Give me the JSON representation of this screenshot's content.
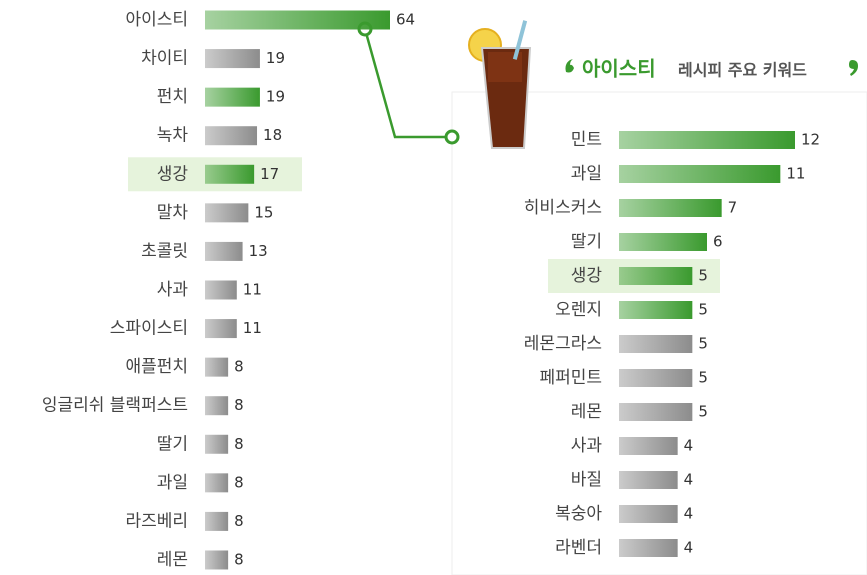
{
  "chart_data": [
    {
      "type": "bar",
      "orientation": "horizontal",
      "categories": [
        "아이스티",
        "차이티",
        "펀치",
        "녹차",
        "생강",
        "말차",
        "초콜릿",
        "사과",
        "스파이스티",
        "애플펀치",
        "잉글리쉬 블랙퍼스트",
        "딸기",
        "과일",
        "라즈베리",
        "레몬"
      ],
      "values": [
        64,
        19,
        19,
        18,
        17,
        15,
        13,
        11,
        11,
        8,
        8,
        8,
        8,
        8,
        8
      ],
      "colors": [
        "#3a9a2e",
        "#8c8c8c",
        "#3a9a2e",
        "#8c8c8c",
        "#3a9a2e",
        "#8c8c8c",
        "#8c8c8c",
        "#8c8c8c",
        "#8c8c8c",
        "#8c8c8c",
        "#8c8c8c",
        "#8c8c8c",
        "#8c8c8c",
        "#8c8c8c",
        "#8c8c8c"
      ],
      "highlight_index": 4
    },
    {
      "type": "bar",
      "orientation": "horizontal",
      "title_highlight": "아이스티",
      "title": "레시피 주요 키워드",
      "categories": [
        "민트",
        "과일",
        "히비스커스",
        "딸기",
        "생강",
        "오렌지",
        "레몬그라스",
        "페퍼민트",
        "레몬",
        "사과",
        "바질",
        "복숭아",
        "라벤더"
      ],
      "values": [
        12,
        11,
        7,
        6,
        5,
        5,
        5,
        5,
        5,
        4,
        4,
        4,
        4
      ],
      "colors": [
        "#3a9a2e",
        "#3a9a2e",
        "#3a9a2e",
        "#3a9a2e",
        "#3a9a2e",
        "#3a9a2e",
        "#8c8c8c",
        "#8c8c8c",
        "#8c8c8c",
        "#8c8c8c",
        "#8c8c8c",
        "#8c8c8c",
        "#8c8c8c"
      ],
      "highlight_index": 4
    }
  ]
}
